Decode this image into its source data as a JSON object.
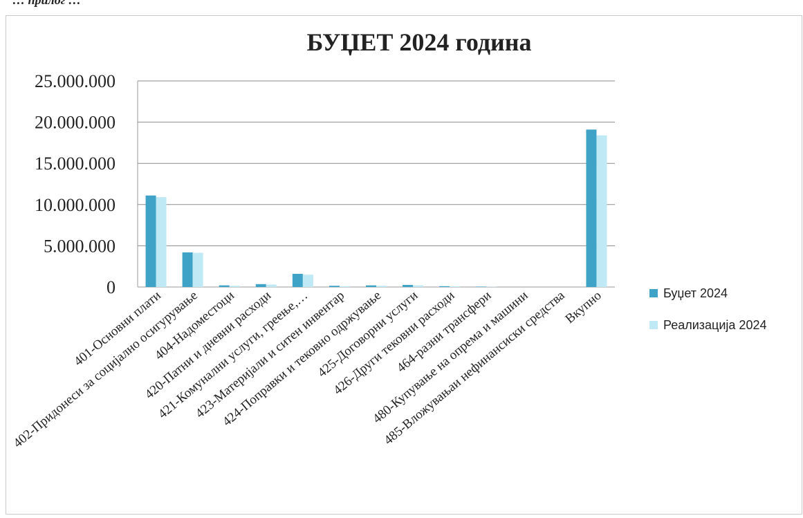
{
  "page": {
    "header_fragment": "… прилог …"
  },
  "chart_data": {
    "type": "bar",
    "title": "БУЏЕТ 2024 година",
    "xlabel": "",
    "ylabel": "",
    "ylim": [
      0,
      25000000
    ],
    "yticks": [
      0,
      5000000,
      10000000,
      15000000,
      20000000,
      25000000
    ],
    "ytick_labels": [
      "0",
      "5.000.000",
      "10.000.000",
      "15.000.000",
      "20.000.000",
      "25.000.000"
    ],
    "grid": true,
    "legend_position": "right",
    "categories": [
      "401-Основни плати",
      "402-Придонеси за социјално осигурување",
      "404-Надоместоци",
      "420-Патни и дневни расходи",
      "421-Комунални услуги, греење,…",
      "423-Материјали и ситен инвентар",
      "424-Поправки и тековно одржување",
      "425-Договорни услуги",
      "426-Други тековни расходи",
      "464-разни трансфери",
      "480-Купување на опрема и машини",
      "485-Вложувањаи нефинансиски средства",
      "Вкупно"
    ],
    "series": [
      {
        "name": "Буџет 2024",
        "color": "#3ea3c6",
        "values": [
          11100000,
          4200000,
          200000,
          350000,
          1600000,
          150000,
          200000,
          250000,
          100000,
          50000,
          0,
          0,
          19100000
        ]
      },
      {
        "name": "Реализација 2024",
        "color": "#bfe9f4",
        "values": [
          10900000,
          4150000,
          150000,
          300000,
          1500000,
          100000,
          150000,
          200000,
          80000,
          30000,
          0,
          0,
          18400000
        ]
      }
    ]
  }
}
